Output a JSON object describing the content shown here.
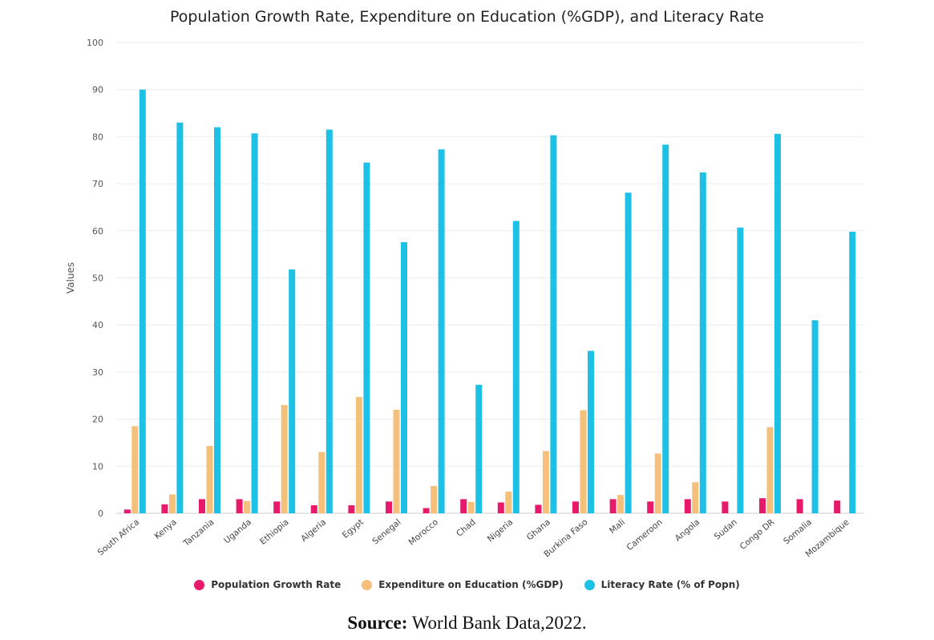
{
  "chart_data": {
    "type": "bar",
    "title": "Population Growth Rate, Expenditure on Education (%GDP), and Literacy Rate",
    "ylabel": "Values",
    "xlabel": "",
    "ylim": [
      0,
      100
    ],
    "yticks": [
      0,
      10,
      20,
      30,
      40,
      50,
      60,
      70,
      80,
      90,
      100
    ],
    "grid": true,
    "legend_position": "bottom",
    "categories": [
      "South Africa",
      "Kenya",
      "Tanzania",
      "Uganda",
      "Ethiopia",
      "Algeria",
      "Egypt",
      "Senegal",
      "Morocco",
      "Chad",
      "Nigeria",
      "Ghana",
      "Burkina Faso",
      "Mali",
      "Cameroon",
      "Angola",
      "Sudan",
      "Congo DR",
      "Somalia",
      "Mozambique"
    ],
    "series": [
      {
        "name": "Population Growth Rate",
        "color": "#e6196a",
        "values": [
          0.8,
          1.9,
          3.0,
          3.0,
          2.5,
          1.7,
          1.7,
          2.5,
          1.1,
          3.0,
          2.3,
          1.8,
          2.5,
          3.0,
          2.5,
          3.0,
          2.5,
          3.2,
          3.0,
          2.7
        ]
      },
      {
        "name": "Expenditure on Education (%GDP)",
        "color": "#f5c07a",
        "values": [
          18.5,
          4.0,
          14.3,
          2.6,
          23.0,
          13.0,
          24.7,
          22.0,
          5.8,
          2.4,
          4.6,
          13.2,
          21.9,
          3.9,
          12.7,
          6.6,
          0,
          18.3,
          0,
          0
        ]
      },
      {
        "name": "Literacy Rate (% of Popn)",
        "color": "#1ec1e6",
        "values": [
          90.0,
          83.0,
          82.0,
          80.7,
          51.8,
          81.5,
          74.5,
          57.6,
          77.3,
          27.3,
          62.1,
          80.3,
          34.5,
          68.1,
          78.3,
          72.4,
          60.7,
          80.6,
          41.0,
          59.8
        ]
      }
    ]
  },
  "source": {
    "label": "Source:",
    "text": " World Bank Data,2022."
  }
}
